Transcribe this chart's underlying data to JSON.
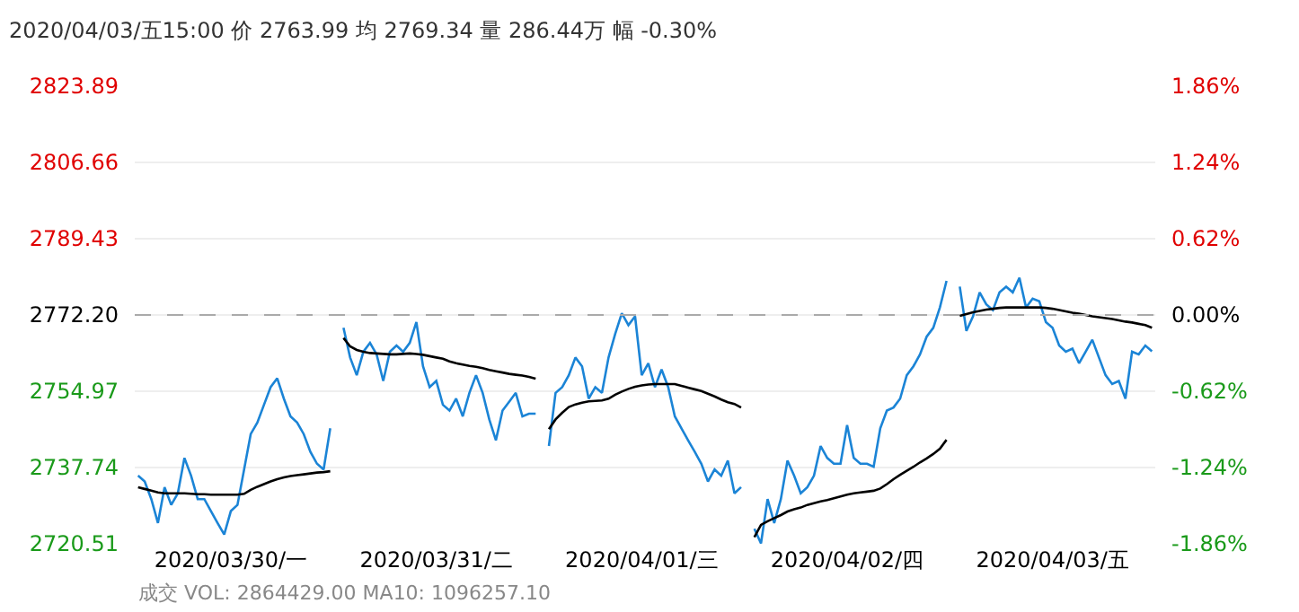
{
  "chart_data": {
    "type": "line",
    "title": "2020/04/03/五15:00 价 2763.99 均 2769.34 量 286.44万 幅 -0.30%",
    "annotations": [
      "成交 VOL: 2864429.00 MA10: 1096257.10"
    ],
    "categories": [
      null,
      null,
      null,
      null,
      null,
      null,
      null,
      null,
      null,
      null,
      null,
      null,
      null,
      null,
      "2020/03/30/一",
      null,
      null,
      null,
      null,
      null,
      null,
      null,
      null,
      null,
      null,
      null,
      null,
      null,
      null,
      null,
      null,
      null,
      null,
      null,
      null,
      null,
      null,
      null,
      null,
      null,
      null,
      null,
      null,
      null,
      null,
      "2020/03/31/二",
      null,
      null,
      null,
      null,
      null,
      null,
      null,
      null,
      null,
      null,
      null,
      null,
      null,
      null,
      null,
      null,
      null,
      null,
      null,
      null,
      null,
      null,
      null,
      null,
      null,
      null,
      null,
      null,
      null,
      null,
      "2020/04/01/三",
      null,
      null,
      null,
      null,
      null,
      null,
      null,
      null,
      null,
      null,
      null,
      null,
      null,
      null,
      null,
      null,
      null,
      null,
      null,
      null,
      null,
      null,
      null,
      null,
      null,
      null,
      null,
      null,
      null,
      null,
      "2020/04/02/四",
      null,
      null,
      null,
      null,
      null,
      null,
      null,
      null,
      null,
      null,
      null,
      null,
      null,
      null,
      null,
      null,
      null,
      null,
      null,
      null,
      null,
      null,
      null,
      null,
      null,
      null,
      null,
      null,
      null,
      null,
      "2020/04/03/五",
      null,
      null,
      null,
      null,
      null,
      null,
      null,
      null,
      null,
      null,
      null,
      null,
      null,
      null,
      null
    ],
    "ylim": [
      2720.51,
      2823.89
    ],
    "yticks": [
      {
        "value": 2720.51,
        "label": "2720.51"
      },
      {
        "value": 2737.74,
        "label": "2737.74"
      },
      {
        "value": 2754.97,
        "label": "2754.97"
      },
      {
        "value": 2772.2,
        "label": "2772.20"
      },
      {
        "value": 2789.43,
        "label": "2789.43"
      },
      {
        "value": 2806.66,
        "label": "2806.66"
      },
      {
        "value": 2823.89,
        "label": "2823.89"
      }
    ],
    "y2lim": [
      -1.86,
      1.86
    ],
    "y2ticks": [
      {
        "value": -1.86,
        "label": "-1.86%"
      },
      {
        "value": -1.24,
        "label": "-1.24%"
      },
      {
        "value": -0.62,
        "label": "-0.62%"
      },
      {
        "value": 0,
        "label": "0.00%"
      },
      {
        "value": 0.62,
        "label": "0.62%"
      },
      {
        "value": 1.24,
        "label": "1.24%"
      },
      {
        "value": 1.86,
        "label": "1.86%"
      }
    ],
    "grid": "y",
    "ref_lines": [
      {
        "axis": "y",
        "value": 2772.2,
        "color": "#aaaaaa",
        "line_style": "dashed"
      }
    ],
    "series": [
      {
        "color": "#1b84d6",
        "values": [
          2735.9,
          2734.6,
          2730.6,
          2725.2,
          2733.3,
          2729.3,
          2731.9,
          2739.9,
          2735.9,
          2730.6,
          2730.6,
          2727.9,
          2725.2,
          2722.6,
          2727.9,
          2729.3,
          2737.3,
          2745.3,
          2747.9,
          2751.9,
          2755.9,
          2757.9,
          2753.3,
          2749.3,
          2747.9,
          2745.3,
          2741.3,
          2738.6,
          2737.3,
          2746.6,
          null,
          2769.3,
          2762.6,
          2758.6,
          2763.9,
          2765.9,
          2763.3,
          2757.3,
          2763.9,
          2765.3,
          2763.9,
          2765.9,
          2770.6,
          2760.6,
          2755.9,
          2757.3,
          2751.9,
          2750.6,
          2753.3,
          2749.3,
          2754.6,
          2758.6,
          2754.6,
          2748.6,
          2743.9,
          2750.6,
          2752.6,
          2754.6,
          2749.3,
          2749.9,
          2749.9,
          null,
          2742.6,
          2754.6,
          2755.9,
          2758.6,
          2762.6,
          2760.6,
          2753.3,
          2755.9,
          2754.6,
          2762.6,
          2767.9,
          2772.6,
          2769.9,
          2771.9,
          2758.6,
          2761.3,
          2755.9,
          2759.9,
          2755.9,
          2749.3,
          2746.6,
          2743.9,
          2741.3,
          2738.6,
          2734.6,
          2737.3,
          2735.9,
          2739.3,
          2731.9,
          2733.3,
          null,
          2723.9,
          2720.6,
          2730.6,
          2725.2,
          2730.6,
          2739.3,
          2735.9,
          2731.9,
          2733.3,
          2735.9,
          2742.6,
          2739.9,
          2738.6,
          2738.6,
          2747.3,
          2739.9,
          2738.6,
          2738.6,
          2737.9,
          2746.6,
          2750.6,
          2751.3,
          2753.3,
          2758.6,
          2760.6,
          2763.3,
          2767.3,
          2769.3,
          2773.9,
          2779.9,
          null,
          2778.6,
          2768.6,
          2771.9,
          2777.3,
          2774.6,
          2773.3,
          2777.3,
          2778.6,
          2777.3,
          2780.6,
          2773.9,
          2775.9,
          2775.3,
          2770.6,
          2769.3,
          2765.3,
          2763.9,
          2764.6,
          2761.3,
          2763.9,
          2766.6,
          2762.6,
          2758.6,
          2756.6,
          2757.3,
          2753.3,
          2763.9,
          2763.3,
          2765.3,
          2764.0
        ]
      },
      {
        "color": "#000000",
        "values": [
          2733.3,
          2732.9,
          2732.5,
          2732.1,
          2731.9,
          2731.9,
          2731.9,
          2731.9,
          2731.8,
          2731.7,
          2731.7,
          2731.6,
          2731.6,
          2731.6,
          2731.6,
          2731.6,
          2731.8,
          2732.7,
          2733.4,
          2734.0,
          2734.6,
          2735.1,
          2735.5,
          2735.8,
          2736.0,
          2736.2,
          2736.4,
          2736.6,
          2736.7,
          2736.9,
          null,
          2767.0,
          2765.1,
          2764.3,
          2763.9,
          2763.6,
          2763.5,
          2763.4,
          2763.3,
          2763.3,
          2763.4,
          2763.5,
          2763.4,
          2763.2,
          2762.9,
          2762.6,
          2762.3,
          2761.7,
          2761.3,
          2761.0,
          2760.7,
          2760.5,
          2760.2,
          2759.8,
          2759.5,
          2759.2,
          2758.9,
          2758.7,
          2758.5,
          2758.2,
          2757.8,
          null,
          2746.4,
          2748.6,
          2750.1,
          2751.4,
          2752.0,
          2752.4,
          2752.7,
          2752.8,
          2752.9,
          2753.3,
          2754.2,
          2754.9,
          2755.5,
          2756.0,
          2756.3,
          2756.5,
          2756.6,
          2756.6,
          2756.6,
          2756.6,
          2756.2,
          2755.8,
          2755.4,
          2755.0,
          2754.4,
          2753.8,
          2753.1,
          2752.5,
          2752.1,
          2751.3,
          null,
          2722.0,
          2724.8,
          2725.6,
          2726.3,
          2727.0,
          2727.8,
          2728.3,
          2728.7,
          2729.3,
          2729.7,
          2730.1,
          2730.4,
          2730.8,
          2731.2,
          2731.6,
          2731.9,
          2732.1,
          2732.3,
          2732.5,
          2733.0,
          2734.0,
          2735.1,
          2736.1,
          2737.0,
          2737.9,
          2738.9,
          2739.8,
          2740.8,
          2742.0,
          2744.0,
          null,
          2772.0,
          2772.4,
          2772.8,
          2773.1,
          2773.4,
          2773.6,
          2773.8,
          2773.9,
          2773.9,
          2773.9,
          2773.9,
          2773.9,
          2773.9,
          2773.8,
          2773.6,
          2773.3,
          2773.0,
          2772.7,
          2772.5,
          2772.2,
          2771.9,
          2771.7,
          2771.5,
          2771.3,
          2771.0,
          2770.7,
          2770.5,
          2770.2,
          2769.9,
          2769.3
        ]
      }
    ]
  }
}
